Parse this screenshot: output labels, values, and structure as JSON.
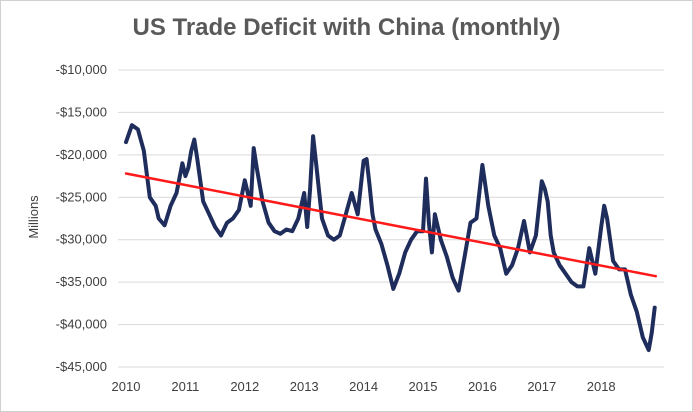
{
  "chart_data": {
    "type": "line",
    "title": "US Trade Deficit with China (monthly)",
    "xlabel": "",
    "ylabel": "Millions",
    "ylim": [
      -45000,
      -10000
    ],
    "yticks": [
      -10000,
      -15000,
      -20000,
      -25000,
      -30000,
      -35000,
      -40000,
      -45000
    ],
    "ytick_labels": [
      "-$10,000",
      "-$15,000",
      "-$20,000",
      "-$25,000",
      "-$30,000",
      "-$35,000",
      "-$40,000",
      "-$45,000"
    ],
    "xticks": [
      2010,
      2011,
      2012,
      2013,
      2014,
      2015,
      2016,
      2017,
      2018
    ],
    "xtick_labels": [
      "2010",
      "2011",
      "2012",
      "2013",
      "2014",
      "2015",
      "2016",
      "2017",
      "2018"
    ],
    "xlim": [
      2010,
      2018.92
    ],
    "grid": true,
    "series": [
      {
        "name": "",
        "color": "#1f2d5c",
        "x": [
          2010.0,
          2010.1,
          2010.2,
          2010.3,
          2010.4,
          2010.5,
          2010.55,
          2010.65,
          2010.75,
          2010.85,
          2010.95,
          2011.0,
          2011.05,
          2011.1,
          2011.15,
          2011.2,
          2011.3,
          2011.4,
          2011.5,
          2011.6,
          2011.7,
          2011.8,
          2011.9,
          2012.0,
          2012.05,
          2012.1,
          2012.15,
          2012.2,
          2012.3,
          2012.4,
          2012.5,
          2012.6,
          2012.7,
          2012.8,
          2012.9,
          2013.0,
          2013.05,
          2013.1,
          2013.15,
          2013.2,
          2013.3,
          2013.4,
          2013.5,
          2013.6,
          2013.7,
          2013.8,
          2013.9,
          2014.0,
          2014.05,
          2014.1,
          2014.15,
          2014.2,
          2014.3,
          2014.4,
          2014.5,
          2014.6,
          2014.7,
          2014.8,
          2014.9,
          2015.0,
          2015.05,
          2015.1,
          2015.15,
          2015.2,
          2015.3,
          2015.4,
          2015.5,
          2015.6,
          2015.7,
          2015.8,
          2015.9,
          2016.0,
          2016.1,
          2016.2,
          2016.3,
          2016.4,
          2016.5,
          2016.6,
          2016.7,
          2016.8,
          2016.9,
          2017.0,
          2017.05,
          2017.1,
          2017.15,
          2017.2,
          2017.3,
          2017.4,
          2017.5,
          2017.6,
          2017.7,
          2017.8,
          2017.9,
          2018.0,
          2018.05,
          2018.1,
          2018.15,
          2018.2,
          2018.3,
          2018.4,
          2018.5,
          2018.6,
          2018.7,
          2018.8,
          2018.85,
          2018.9
        ],
        "y": [
          -18500,
          -16500,
          -17000,
          -19500,
          -25000,
          -26000,
          -27500,
          -28300,
          -26000,
          -24500,
          -21000,
          -22500,
          -21500,
          -19500,
          -18200,
          -20500,
          -25500,
          -27000,
          -28500,
          -29500,
          -28000,
          -27500,
          -26500,
          -23000,
          -24500,
          -26000,
          -19200,
          -21500,
          -25500,
          -28000,
          -29000,
          -29300,
          -28800,
          -29000,
          -27500,
          -24500,
          -28500,
          -24000,
          -17800,
          -21000,
          -27500,
          -29500,
          -30000,
          -29500,
          -27000,
          -24500,
          -27000,
          -20700,
          -20500,
          -23500,
          -27000,
          -28800,
          -30500,
          -33000,
          -35800,
          -34000,
          -31500,
          -30000,
          -29000,
          -29000,
          -22800,
          -28000,
          -31500,
          -27000,
          -30000,
          -32000,
          -34500,
          -36000,
          -32000,
          -28000,
          -27500,
          -21200,
          -26000,
          -29500,
          -31000,
          -34000,
          -33000,
          -31000,
          -27800,
          -31500,
          -29500,
          -23100,
          -24000,
          -25500,
          -29500,
          -31500,
          -33000,
          -34000,
          -35000,
          -35500,
          -35500,
          -31000,
          -34000,
          -28500,
          -26000,
          -27500,
          -30000,
          -32500,
          -33500,
          -33500,
          -36500,
          -38500,
          -41500,
          -43000,
          -41000,
          -38000
        ]
      },
      {
        "name": "",
        "color": "#ff1a1a",
        "x": [
          2010.0,
          2018.92
        ],
        "y": [
          -22200,
          -34300
        ]
      }
    ]
  }
}
